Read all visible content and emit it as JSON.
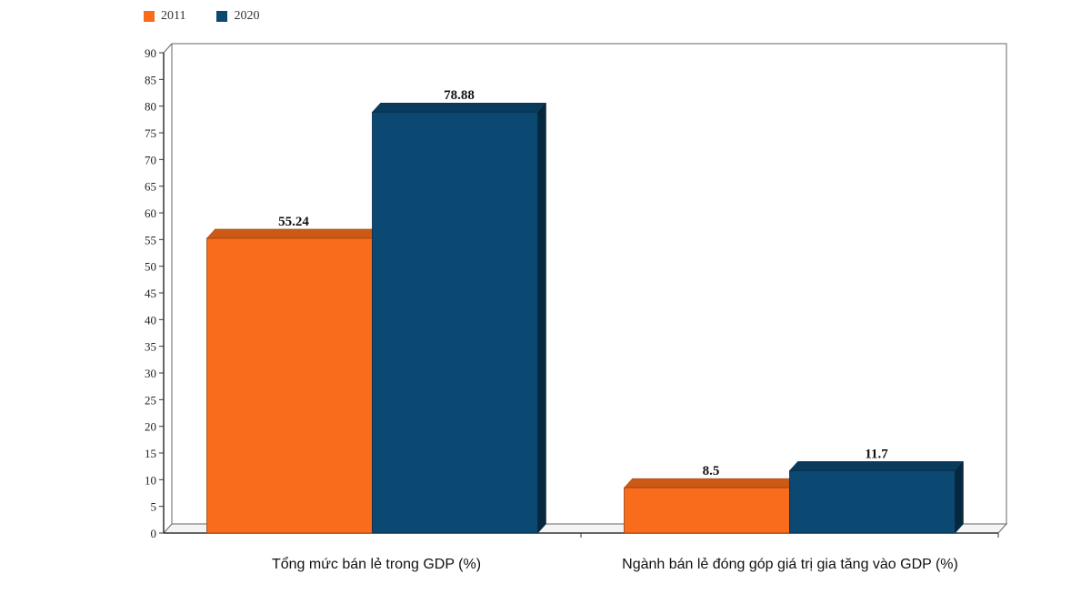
{
  "chart_data": {
    "type": "bar",
    "title": "",
    "xlabel": "",
    "ylabel": "",
    "ylim": [
      0,
      90
    ],
    "ytick_step": 5,
    "categories": [
      "Tổng mức bán lẻ trong GDP (%)",
      "Ngành bán lẻ đóng góp giá trị gia tăng vào GDP (%)"
    ],
    "series": [
      {
        "name": "2011",
        "color": "#f96c1b",
        "values": [
          55.24,
          8.5
        ],
        "labels": [
          "55.24",
          "8.5"
        ]
      },
      {
        "name": "2020",
        "color": "#0b4872",
        "values": [
          78.88,
          11.7
        ],
        "labels": [
          "78.88",
          "11.7"
        ]
      }
    ],
    "legend_position": "top-left",
    "grid": false
  }
}
